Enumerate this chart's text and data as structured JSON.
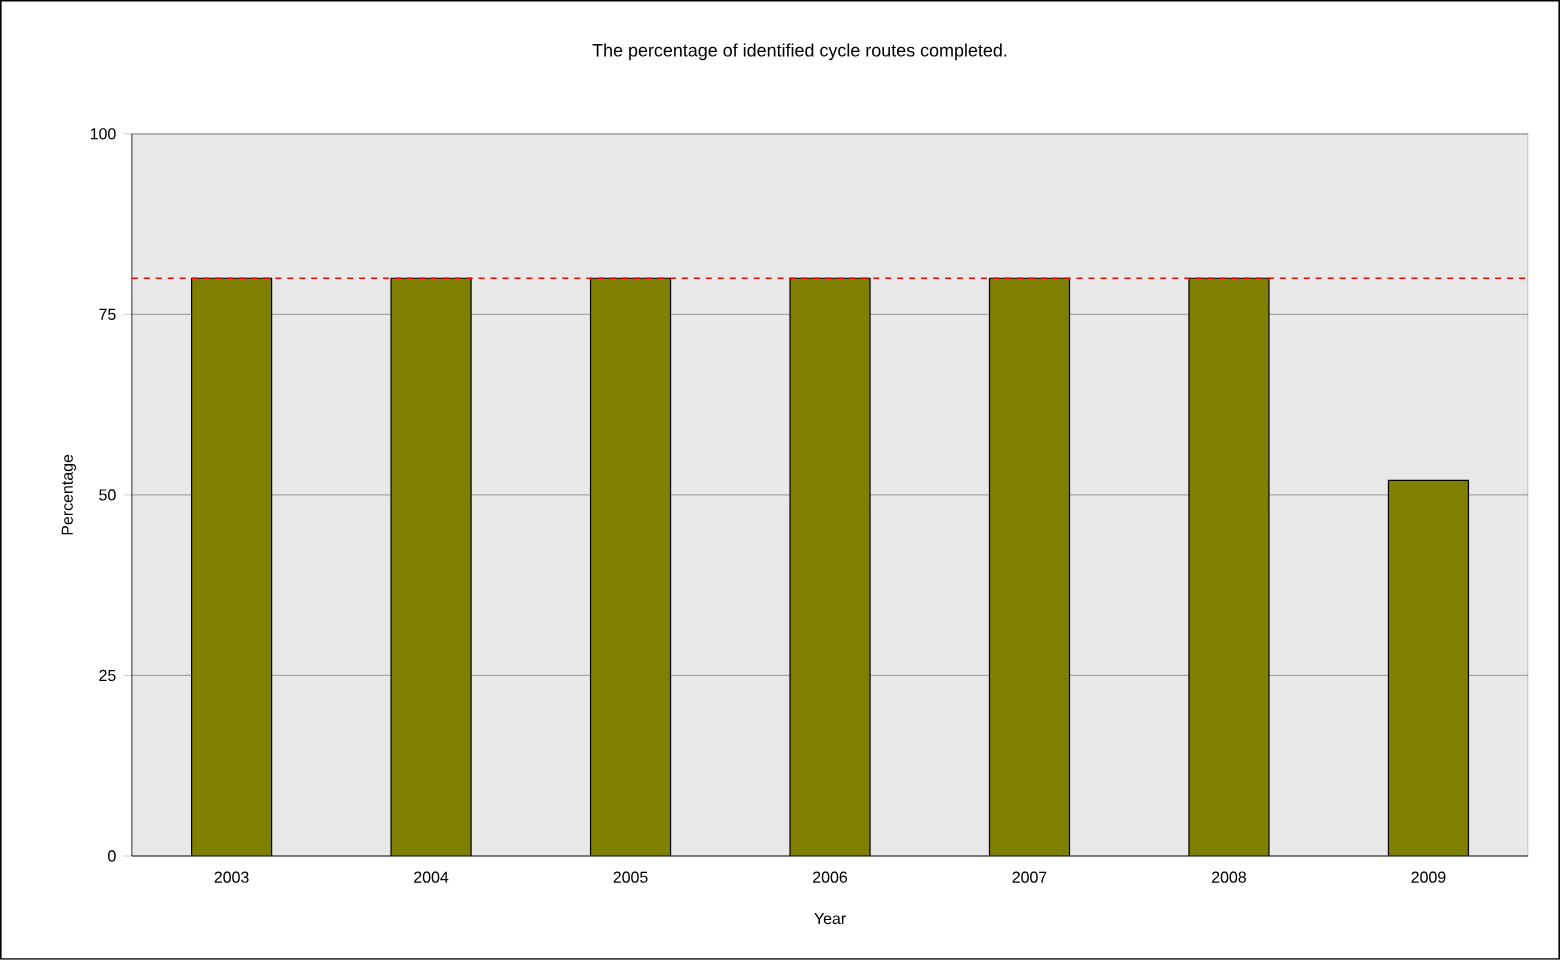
{
  "chart_data": {
    "type": "bar",
    "title": "The percentage of  identified cycle routes completed.",
    "xlabel": "Year",
    "ylabel": "Percentage",
    "categories": [
      "2003",
      "2004",
      "2005",
      "2006",
      "2007",
      "2008",
      "2009"
    ],
    "values": [
      80,
      80,
      80,
      80,
      80,
      80,
      52
    ],
    "color": "#808000",
    "ylim": [
      0,
      100
    ],
    "yticks": [
      0,
      25,
      50,
      75,
      100
    ],
    "grid": "y",
    "ref_lines": [
      {
        "axis": "y",
        "value": 80,
        "color": "#ff0000",
        "line_style": "dashed"
      }
    ]
  }
}
